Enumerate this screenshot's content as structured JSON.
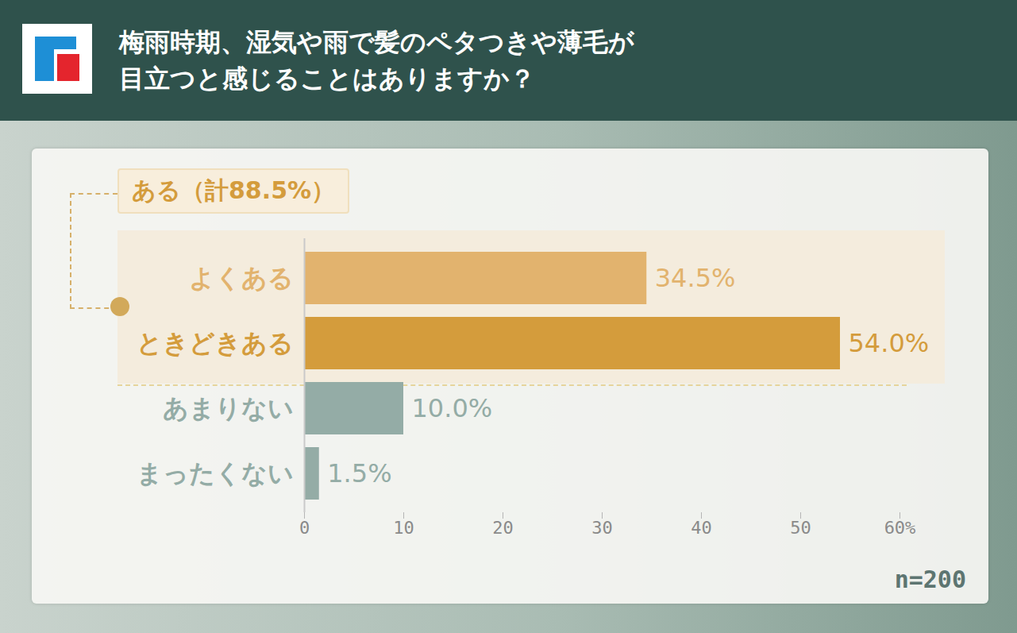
{
  "chart_data": {
    "type": "bar",
    "title": "梅雨時期、湿気や雨で髪のペタつきや薄毛が目立つと感じることはありますか？",
    "annotation": "ある（計88.5%）",
    "note": "n=200",
    "orientation": "horizontal",
    "categories": [
      "よくある",
      "ときどきある",
      "あまりない",
      "まったくない"
    ],
    "values": [
      34.5,
      54.0,
      10.0,
      1.5
    ],
    "value_labels": [
      "34.5%",
      "54.0%",
      "10.0%",
      "1.5%"
    ],
    "colors": [
      "#e2b36e",
      "#d49c3c",
      "#94aca6",
      "#94aca6"
    ],
    "xlim": [
      0,
      60
    ],
    "xticks": [
      0,
      10,
      20,
      30,
      40,
      50,
      {
        "value": 60,
        "label": "60%"
      }
    ],
    "data_labels": true,
    "grid": false
  }
}
